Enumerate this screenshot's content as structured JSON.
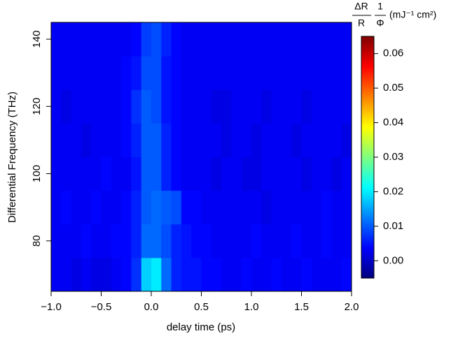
{
  "chart_data": {
    "type": "heatmap",
    "xlabel": "delay time (ps)",
    "ylabel": "Differential Frequency (THz)",
    "colorbar_title": {
      "numerator1": "ΔR",
      "denominator1": "R",
      "numerator2": "1",
      "denominator2": "Φ",
      "unit": "(mJ⁻¹ cm²)"
    },
    "x": [
      -0.95,
      -0.85,
      -0.75,
      -0.65,
      -0.55,
      -0.45,
      -0.35,
      -0.25,
      -0.15,
      -0.05,
      0.05,
      0.15,
      0.25,
      0.35,
      0.45,
      0.55,
      0.65,
      0.75,
      0.85,
      0.95,
      1.05,
      1.15,
      1.25,
      1.35,
      1.45,
      1.55,
      1.65,
      1.75,
      1.85,
      1.95
    ],
    "y": [
      70,
      80,
      90,
      100,
      110,
      120,
      130,
      140
    ],
    "z": [
      [
        0.003,
        0.003,
        0.002,
        0.003,
        0.002,
        0.002,
        0.003,
        0.004,
        0.007,
        0.018,
        0.02,
        0.011,
        0.006,
        0.005,
        0.005,
        0.004,
        0.004,
        0.003,
        0.003,
        0.004,
        0.003,
        0.003,
        0.004,
        0.003,
        0.003,
        0.004,
        0.003,
        0.003,
        0.003,
        0.004
      ],
      [
        0.003,
        0.003,
        0.003,
        0.004,
        0.003,
        0.003,
        0.004,
        0.004,
        0.006,
        0.011,
        0.011,
        0.009,
        0.006,
        0.005,
        0.004,
        0.004,
        0.003,
        0.003,
        0.003,
        0.003,
        0.004,
        0.003,
        0.003,
        0.003,
        0.004,
        0.003,
        0.003,
        0.004,
        0.003,
        0.003
      ],
      [
        0.003,
        0.004,
        0.003,
        0.003,
        0.004,
        0.003,
        0.003,
        0.004,
        0.006,
        0.01,
        0.011,
        0.01,
        0.009,
        0.004,
        0.004,
        0.003,
        0.003,
        0.003,
        0.003,
        0.003,
        0.003,
        0.002,
        0.003,
        0.003,
        0.003,
        0.003,
        0.003,
        0.004,
        0.003,
        0.003
      ],
      [
        0.003,
        0.003,
        0.003,
        0.003,
        0.003,
        0.004,
        0.003,
        0.003,
        0.005,
        0.01,
        0.01,
        0.006,
        0.004,
        0.003,
        0.003,
        0.003,
        0.002,
        0.003,
        0.003,
        0.002,
        0.002,
        0.003,
        0.003,
        0.003,
        0.003,
        0.002,
        0.003,
        0.003,
        0.002,
        0.003
      ],
      [
        0.003,
        0.003,
        0.003,
        0.002,
        0.003,
        0.003,
        0.003,
        0.004,
        0.006,
        0.01,
        0.01,
        0.006,
        0.004,
        0.003,
        0.003,
        0.003,
        0.003,
        0.002,
        0.003,
        0.003,
        0.002,
        0.003,
        0.003,
        0.003,
        0.002,
        0.003,
        0.003,
        0.003,
        0.003,
        0.002
      ],
      [
        0.003,
        0.002,
        0.003,
        0.003,
        0.003,
        0.003,
        0.003,
        0.004,
        0.007,
        0.01,
        0.009,
        0.005,
        0.004,
        0.003,
        0.003,
        0.003,
        0.002,
        0.002,
        0.003,
        0.003,
        0.003,
        0.002,
        0.003,
        0.003,
        0.003,
        0.002,
        0.003,
        0.003,
        0.003,
        0.003
      ],
      [
        0.003,
        0.003,
        0.003,
        0.003,
        0.003,
        0.003,
        0.003,
        0.004,
        0.005,
        0.009,
        0.009,
        0.005,
        0.004,
        0.003,
        0.003,
        0.003,
        0.003,
        0.003,
        0.003,
        0.003,
        0.003,
        0.003,
        0.003,
        0.003,
        0.003,
        0.003,
        0.003,
        0.003,
        0.003,
        0.003
      ],
      [
        0.003,
        0.003,
        0.003,
        0.003,
        0.003,
        0.003,
        0.003,
        0.003,
        0.004,
        0.008,
        0.009,
        0.006,
        0.004,
        0.003,
        0.003,
        0.003,
        0.003,
        0.003,
        0.003,
        0.003,
        0.003,
        0.003,
        0.003,
        0.003,
        0.003,
        0.003,
        0.003,
        0.003,
        0.003,
        0.003
      ]
    ],
    "xlim": [
      -1,
      2
    ],
    "ylim": [
      65,
      145
    ],
    "zlim": [
      -0.005,
      0.065
    ],
    "xticks": [
      {
        "value": -1,
        "label": "−1.0"
      },
      {
        "value": -0.5,
        "label": "−0.5"
      },
      {
        "value": 0,
        "label": "0.0"
      },
      {
        "value": 0.5,
        "label": "0.5"
      },
      {
        "value": 1,
        "label": "1.0"
      },
      {
        "value": 1.5,
        "label": "1.5"
      },
      {
        "value": 2,
        "label": "2.0"
      }
    ],
    "yticks": [
      80,
      100,
      120,
      140
    ],
    "zticks": [
      {
        "value": 0,
        "label": "0.00"
      },
      {
        "value": 0.01,
        "label": "0.01"
      },
      {
        "value": 0.02,
        "label": "0.02"
      },
      {
        "value": 0.03,
        "label": "0.03"
      },
      {
        "value": 0.04,
        "label": "0.04"
      },
      {
        "value": 0.05,
        "label": "0.05"
      },
      {
        "value": 0.06,
        "label": "0.06"
      }
    ],
    "colors": [
      "#00007f",
      "#0000ff",
      "#007fff",
      "#00ffff",
      "#7fff7f",
      "#ffff00",
      "#ff7f00",
      "#ff0000",
      "#7f0000"
    ]
  }
}
